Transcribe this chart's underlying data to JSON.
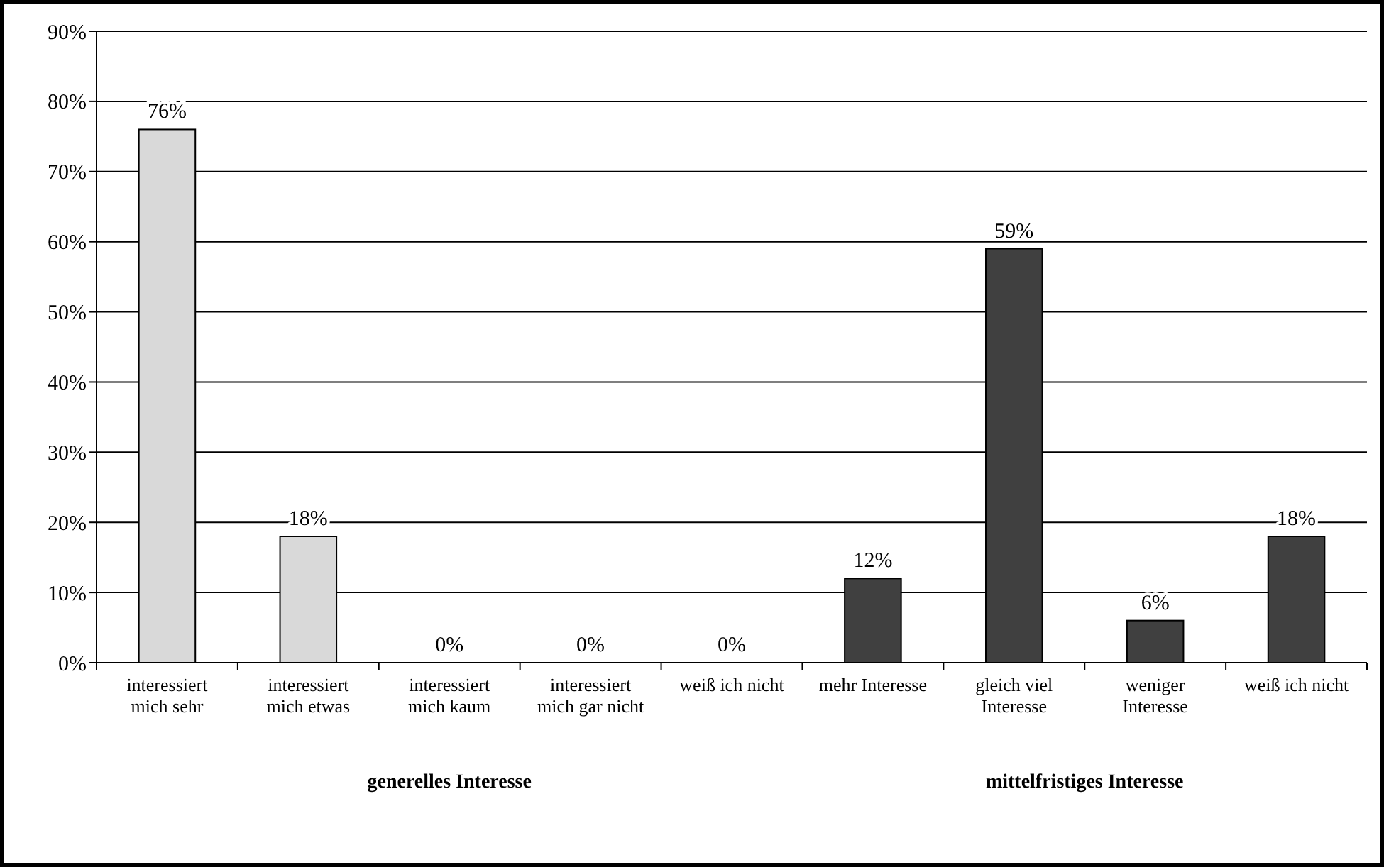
{
  "chart_data": {
    "type": "bar",
    "categories": [
      "interessiert mich sehr",
      "interessiert mich etwas",
      "interessiert mich kaum",
      "interessiert mich gar nicht",
      "weiß ich nicht",
      "mehr Interesse",
      "gleich viel Interesse",
      "weniger Interesse",
      "weiß ich nicht"
    ],
    "series": [
      {
        "color": "#d9d9d9",
        "values": [
          76,
          18,
          0,
          0,
          0,
          null,
          null,
          null,
          null
        ],
        "value_labels": [
          "76%",
          "18%",
          "0%",
          "0%",
          "0%",
          null,
          null,
          null,
          null
        ]
      },
      {
        "color": "#404040",
        "values": [
          null,
          null,
          null,
          null,
          null,
          12,
          59,
          6,
          18
        ],
        "value_labels": [
          null,
          null,
          null,
          null,
          null,
          "12%",
          "59%",
          "6%",
          "18%"
        ]
      }
    ],
    "ylim": [
      0,
      90
    ],
    "yticks": [
      {
        "value": 0,
        "label": "0%"
      },
      {
        "value": 10,
        "label": "10%"
      },
      {
        "value": 20,
        "label": "20%"
      },
      {
        "value": 30,
        "label": "30%"
      },
      {
        "value": 40,
        "label": "40%"
      },
      {
        "value": 50,
        "label": "50%"
      },
      {
        "value": 60,
        "label": "60%"
      },
      {
        "value": 70,
        "label": "70%"
      },
      {
        "value": 80,
        "label": "80%"
      },
      {
        "value": 90,
        "label": "90%"
      }
    ],
    "grid": "y",
    "annotations": [
      "generelles Interesse",
      "mittelfristiges Interesse"
    ]
  }
}
